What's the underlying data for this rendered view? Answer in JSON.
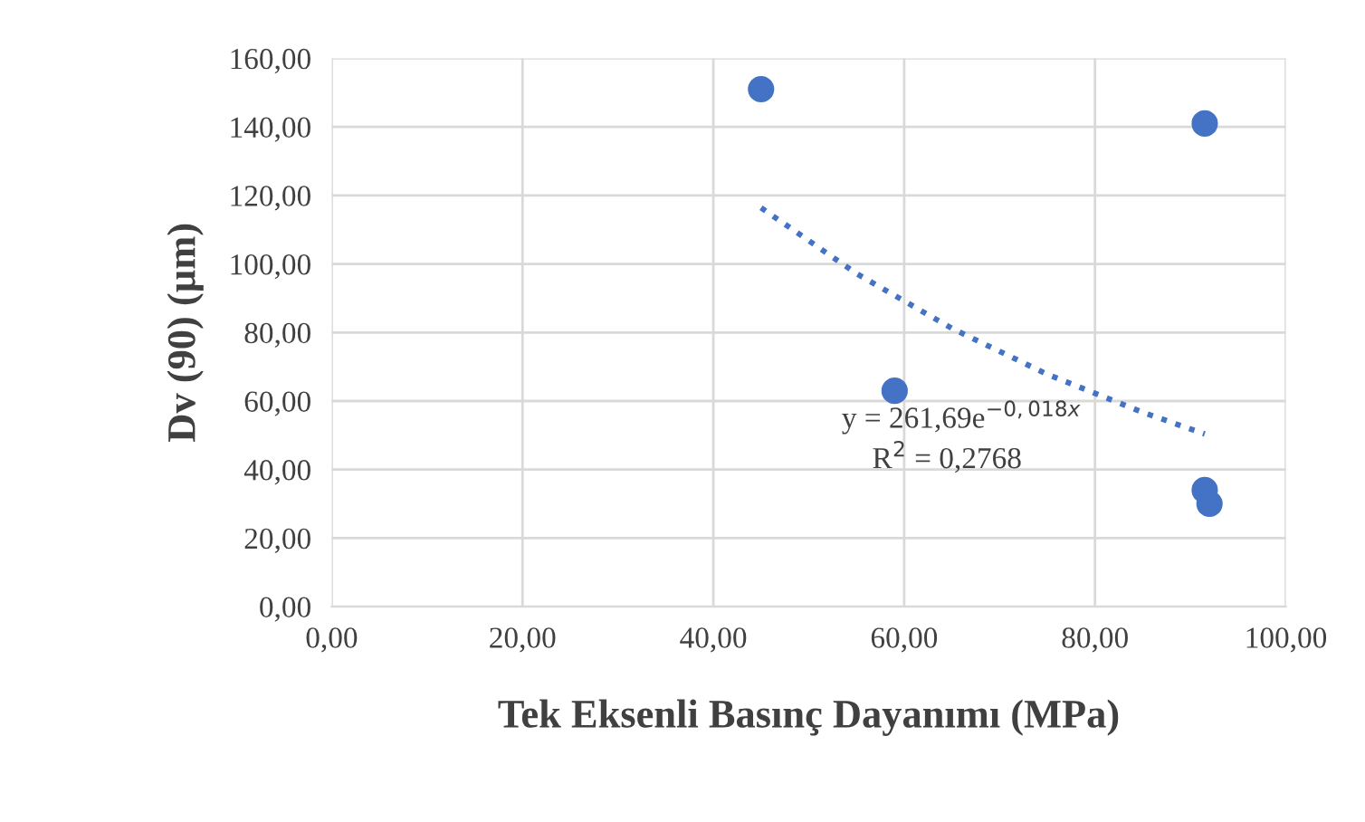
{
  "chart_data": {
    "type": "scatter",
    "xlabel": "Tek Eksenli Basınç Dayanımı (MPa)",
    "ylabel": "Dv (90) (µm)",
    "series": [
      {
        "color": "#4472c4",
        "x": [
          45,
          59,
          91.5,
          91.5,
          92
        ],
        "values": [
          151,
          63,
          141,
          34,
          30
        ],
        "marker": "circle"
      },
      {
        "type": "line",
        "color": "#4472c4",
        "line_style": "dotted",
        "marker": "none",
        "x": [
          45,
          55,
          65,
          75,
          85,
          91.5
        ],
        "values": [
          116.4,
          97.2,
          81.2,
          67.8,
          56.7,
          50.4
        ]
      }
    ],
    "annotations": [
      "y = 261,69e$^{−0,018x}$",
      "R$^{2}$ = 0,2768"
    ],
    "xlim": [
      0,
      100
    ],
    "xticks": [
      {
        "value": 0,
        "label": "0,00"
      },
      {
        "value": 20,
        "label": "20,00"
      },
      {
        "value": 40,
        "label": "40,00"
      },
      {
        "value": 60,
        "label": "60,00"
      },
      {
        "value": 80,
        "label": "80,00"
      },
      {
        "value": 100,
        "label": "100,00"
      }
    ],
    "ylim": [
      0,
      160
    ],
    "yticks": [
      {
        "value": 0,
        "label": "0,00"
      },
      {
        "value": 20,
        "label": "20,00"
      },
      {
        "value": 40,
        "label": "40,00"
      },
      {
        "value": 60,
        "label": "60,00"
      },
      {
        "value": 80,
        "label": "80,00"
      },
      {
        "value": 100,
        "label": "100,00"
      },
      {
        "value": 120,
        "label": "120,00"
      },
      {
        "value": 140,
        "label": "140,00"
      },
      {
        "value": 160,
        "label": "160,00"
      }
    ],
    "grid": true,
    "legend": false
  }
}
